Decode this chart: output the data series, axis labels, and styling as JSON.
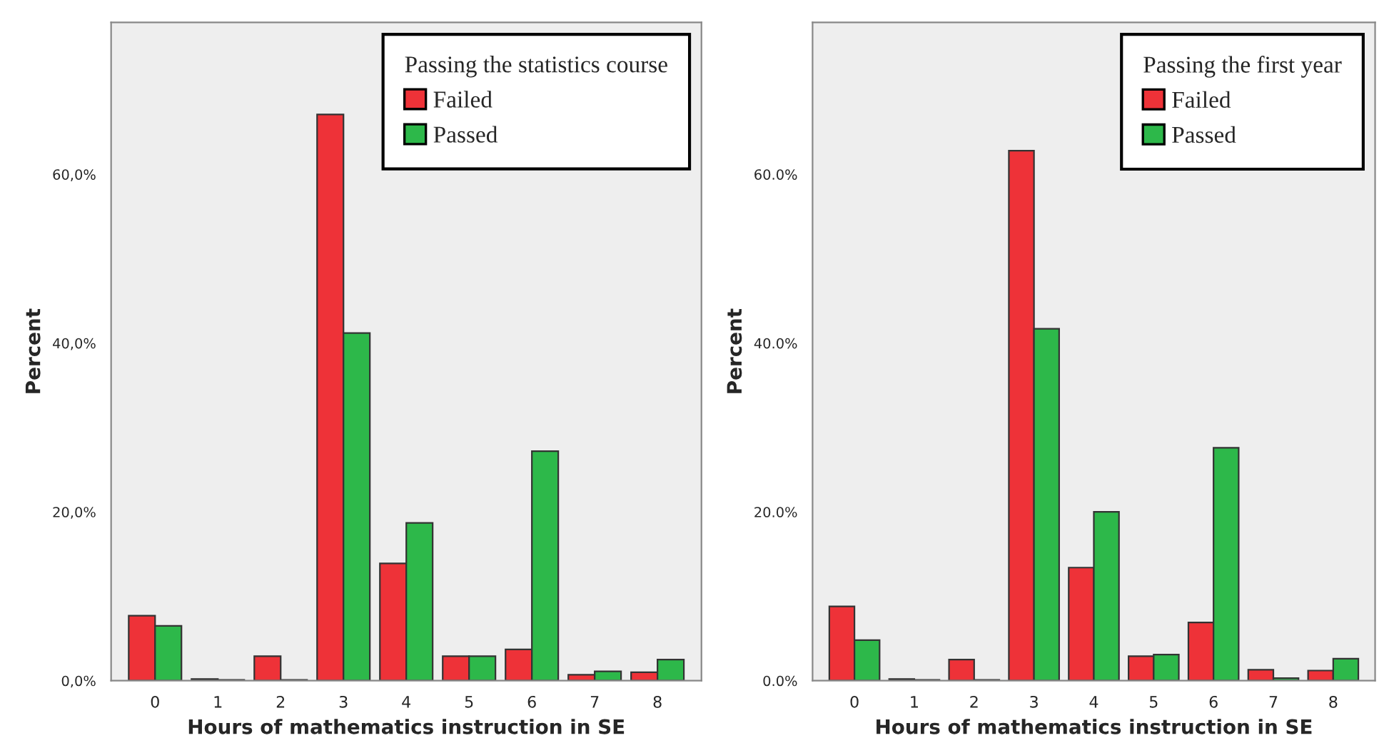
{
  "chart_data": [
    {
      "type": "bar",
      "xlabel": "Hours of mathematics instruction in SE",
      "ylabel": "Percent",
      "legend_title": "Passing the statistics course",
      "legend": "top right",
      "grid": false,
      "categories": [
        "0",
        "1",
        "2",
        "3",
        "4",
        "5",
        "6",
        "7",
        "8"
      ],
      "ylim": [
        0,
        78
      ],
      "yticks": [
        {
          "value": 0,
          "label": "0,0%"
        },
        {
          "value": 20,
          "label": "20,0%"
        },
        {
          "value": 40,
          "label": "40,0%"
        },
        {
          "value": 60,
          "label": "60,0%"
        }
      ],
      "series": [
        {
          "name": "Failed",
          "color": "#ee3238",
          "values": [
            7.7,
            0.2,
            2.9,
            67.1,
            13.9,
            2.9,
            3.7,
            0.7,
            1.0
          ]
        },
        {
          "name": "Passed",
          "color": "#2db84a",
          "values": [
            6.5,
            0.1,
            0.1,
            41.2,
            18.7,
            2.9,
            27.2,
            1.1,
            2.5
          ]
        }
      ]
    },
    {
      "type": "bar",
      "xlabel": "Hours of mathematics instruction in SE",
      "ylabel": "Percent",
      "legend_title": "Passing the first year",
      "legend": "top right",
      "grid": false,
      "categories": [
        "0",
        "1",
        "2",
        "3",
        "4",
        "5",
        "6",
        "7",
        "8"
      ],
      "ylim": [
        0,
        78
      ],
      "yticks": [
        {
          "value": 0,
          "label": "0.0%"
        },
        {
          "value": 20,
          "label": "20.0%"
        },
        {
          "value": 40,
          "label": "40.0%"
        },
        {
          "value": 60,
          "label": "60.0%"
        }
      ],
      "series": [
        {
          "name": "Failed",
          "color": "#ee3238",
          "values": [
            8.8,
            0.2,
            2.5,
            62.8,
            13.4,
            2.9,
            6.9,
            1.3,
            1.2
          ]
        },
        {
          "name": "Passed",
          "color": "#2db84a",
          "values": [
            4.8,
            0.1,
            0.1,
            41.7,
            20.0,
            3.1,
            27.6,
            0.3,
            2.6
          ]
        }
      ]
    }
  ]
}
